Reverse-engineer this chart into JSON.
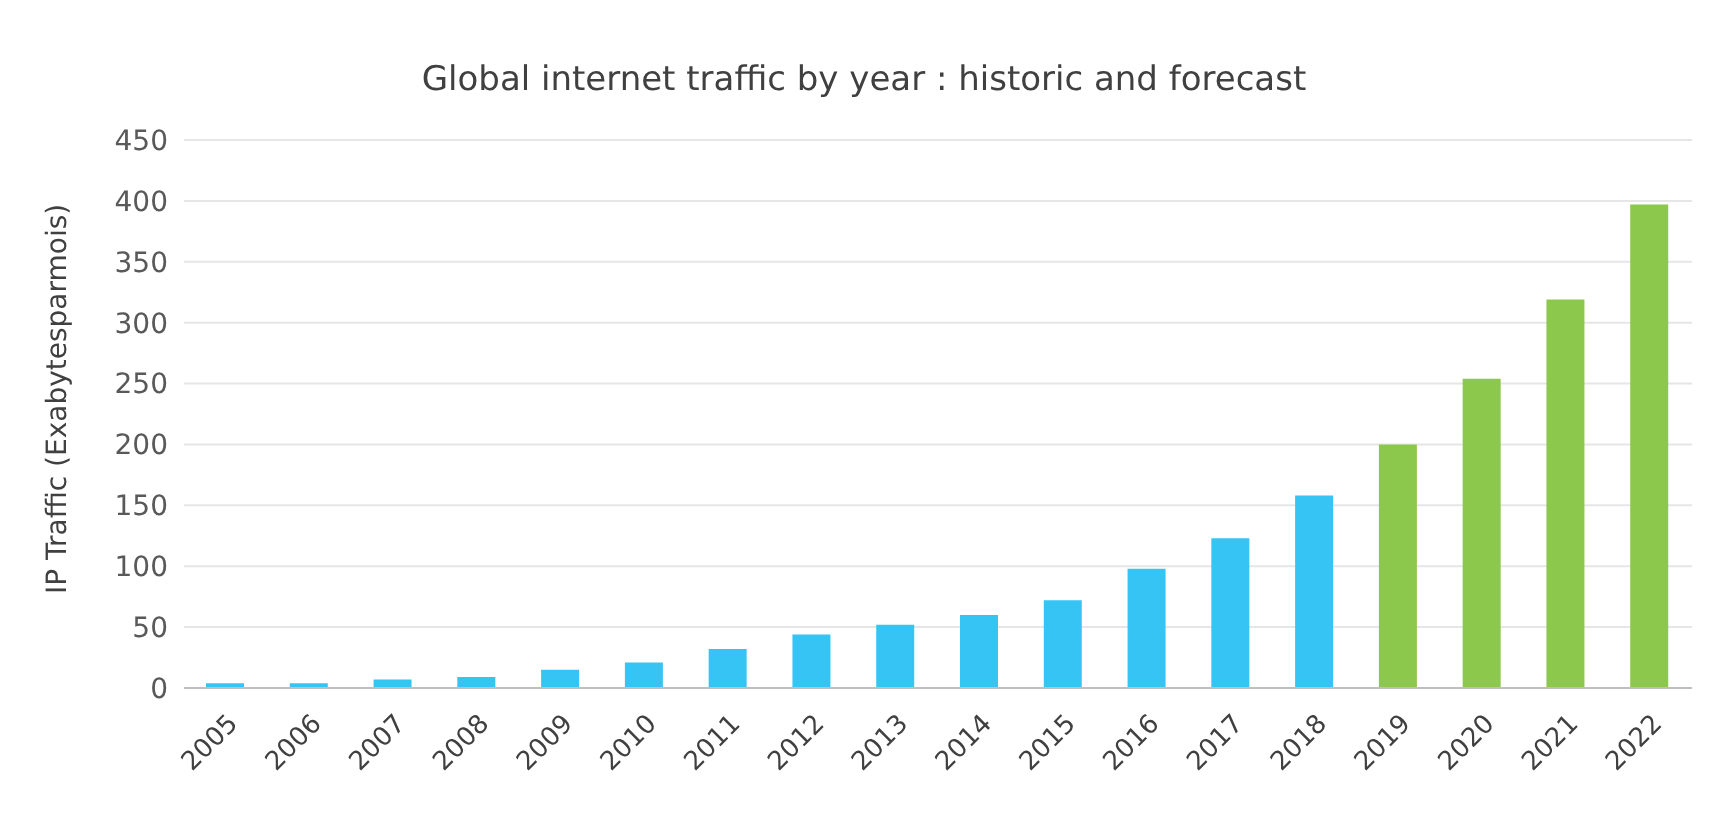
{
  "chart_data": {
    "type": "bar",
    "title": "Global internet traffic by  year : historic and forecast",
    "ylabel": "IP Traffic (Exabytesparmois)",
    "categories": [
      "2005",
      "2006",
      "2007",
      "2008",
      "2009",
      "2010",
      "2011",
      "2012",
      "2013",
      "2014",
      "2015",
      "2016",
      "2017",
      "2018",
      "2019",
      "2020",
      "2021",
      "2022"
    ],
    "values": [
      4,
      4,
      7,
      9,
      15,
      21,
      32,
      44,
      52,
      60,
      72,
      98,
      123,
      158,
      200,
      254,
      319,
      397
    ],
    "colors": [
      "#35c4f4",
      "#35c4f4",
      "#35c4f4",
      "#35c4f4",
      "#35c4f4",
      "#35c4f4",
      "#35c4f4",
      "#35c4f4",
      "#35c4f4",
      "#35c4f4",
      "#35c4f4",
      "#35c4f4",
      "#35c4f4",
      "#35c4f4",
      "#8cc84b",
      "#8cc84b",
      "#8cc84b",
      "#8cc84b"
    ],
    "ylim": [
      0,
      450
    ],
    "yticks": [
      0,
      50,
      100,
      150,
      200,
      250,
      300,
      350,
      400,
      450
    ],
    "grid": "y"
  }
}
